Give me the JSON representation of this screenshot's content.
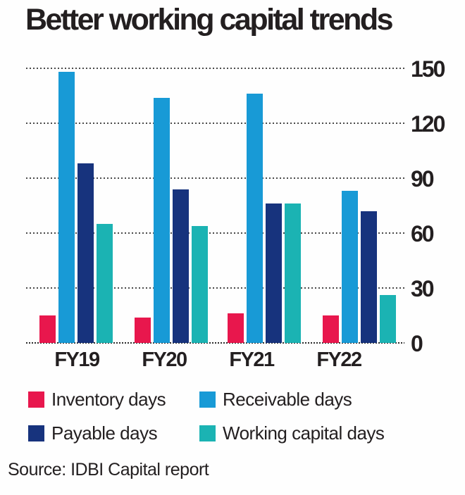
{
  "chart_data": {
    "type": "bar",
    "title": "Better working capital trends",
    "categories": [
      "FY19",
      "FY20",
      "FY21",
      "FY22"
    ],
    "series": [
      {
        "name": "Inventory days",
        "color": "#e8174d",
        "values": [
          15,
          14,
          16,
          15
        ]
      },
      {
        "name": "Receivable days",
        "color": "#189ad6",
        "values": [
          148,
          134,
          136,
          83
        ]
      },
      {
        "name": "Payable days",
        "color": "#17337d",
        "values": [
          98,
          84,
          76,
          72
        ]
      },
      {
        "name": "Working capital days",
        "color": "#1bb3b3",
        "values": [
          65,
          64,
          76,
          26
        ]
      }
    ],
    "y_ticks": [
      0,
      30,
      60,
      90,
      120,
      150
    ],
    "ylim": [
      0,
      150
    ],
    "xlabel": "",
    "ylabel": "",
    "grid": "horizontal-dotted",
    "legend_position": "bottom-left-two-rows",
    "source": "Source: IDBI Capital report",
    "text_color": "#231f20",
    "grid_color": "#4a4a4a"
  }
}
